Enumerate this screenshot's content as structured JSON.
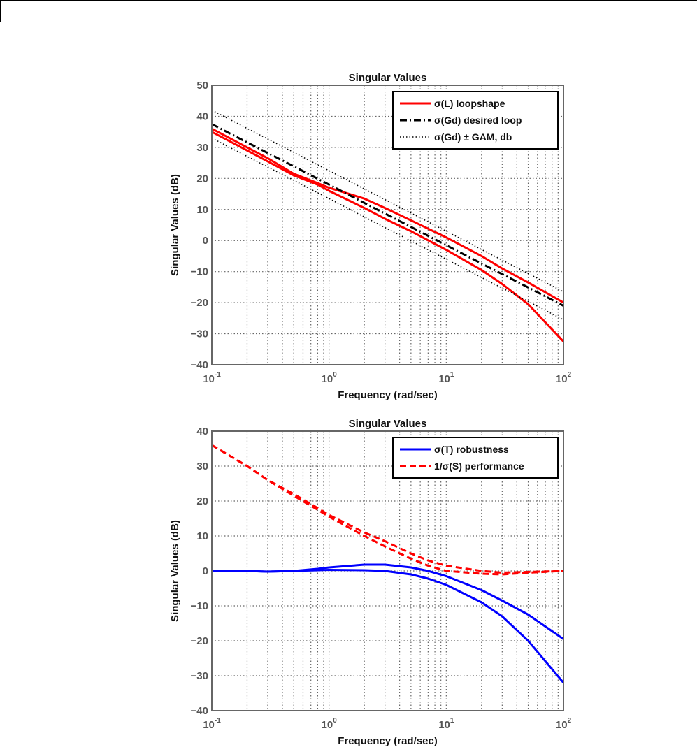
{
  "chart_data": [
    {
      "type": "line",
      "title": "Singular Values",
      "xlabel": "Frequency (rad/sec)",
      "ylabel": "Singular Values (dB)",
      "xscale": "log",
      "xlim": [
        0.1,
        100
      ],
      "ylim": [
        -40,
        50
      ],
      "yticks": [
        50,
        40,
        30,
        20,
        10,
        0,
        -10,
        -20,
        -30,
        -40
      ],
      "xtick_labels": [
        {
          "base": "10",
          "exp": "-1"
        },
        {
          "base": "10",
          "exp": "0"
        },
        {
          "base": "10",
          "exp": "1"
        },
        {
          "base": "10",
          "exp": "2"
        }
      ],
      "grid": true,
      "legend_position": "top-right",
      "x": [
        0.1,
        0.2,
        0.3,
        0.5,
        0.8,
        1,
        2,
        3,
        5,
        10,
        20,
        30,
        50,
        100
      ],
      "series": [
        {
          "name": "σ(L) loopshape",
          "style": "solid",
          "color": "#ff0000",
          "legend": true,
          "values": [
            36,
            30,
            26.5,
            21.5,
            18.5,
            17,
            13.5,
            10.5,
            6.5,
            1,
            -5,
            -9,
            -13.5,
            -20
          ]
        },
        {
          "name": "σ(L) loopshape (min)",
          "style": "solid",
          "color": "#ff0000",
          "legend": false,
          "values": [
            35,
            29,
            25.5,
            21,
            18,
            16,
            10.5,
            7,
            3,
            -3,
            -9.5,
            -14,
            -20.5,
            -32.5
          ]
        },
        {
          "name": "σ(Gd) desired loop",
          "style": "dashdot",
          "color": "#000000",
          "legend": true,
          "values": [
            37.5,
            31.6,
            28.2,
            23.9,
            19.9,
            18,
            12.1,
            8.7,
            4.4,
            -1.5,
            -7.4,
            -10.8,
            -15.1,
            -21
          ]
        },
        {
          "name": "σ(Gd) ± GAM, db",
          "style": "dotted",
          "color": "#000000",
          "legend": true,
          "values": [
            42,
            36.1,
            32.7,
            28.4,
            24.4,
            22.5,
            16.6,
            13.2,
            8.9,
            3,
            -2.9,
            -6.3,
            -10.6,
            -16.5
          ]
        },
        {
          "name": "σ(Gd) - GAM",
          "style": "dotted",
          "color": "#000000",
          "legend": false,
          "values": [
            33,
            27.1,
            23.7,
            19.4,
            15.4,
            13.5,
            7.6,
            4.2,
            -0.1,
            -6,
            -11.9,
            -15.3,
            -19.6,
            -25.5
          ]
        }
      ]
    },
    {
      "type": "line",
      "title": "Singular Values",
      "xlabel": "Frequency (rad/sec)",
      "ylabel": "Singular Values (dB)",
      "xscale": "log",
      "xlim": [
        0.1,
        100
      ],
      "ylim": [
        -40,
        40
      ],
      "yticks": [
        40,
        30,
        20,
        10,
        0,
        -10,
        -20,
        -30,
        -40
      ],
      "xtick_labels": [
        {
          "base": "10",
          "exp": "-1"
        },
        {
          "base": "10",
          "exp": "0"
        },
        {
          "base": "10",
          "exp": "1"
        },
        {
          "base": "10",
          "exp": "2"
        }
      ],
      "grid": true,
      "legend_position": "top-right",
      "x": [
        0.1,
        0.2,
        0.3,
        0.5,
        0.8,
        1,
        2,
        3,
        5,
        7,
        10,
        20,
        30,
        50,
        100
      ],
      "series": [
        {
          "name": "σ(T) robustness",
          "style": "solid",
          "color": "#0000ff",
          "legend": true,
          "values": [
            0,
            0,
            -0.2,
            0,
            0.6,
            1,
            1.8,
            1.8,
            1,
            0,
            -1.5,
            -5.5,
            -8.5,
            -12.5,
            -19.5
          ]
        },
        {
          "name": "σ(T) robustness (min)",
          "style": "solid",
          "color": "#0000ff",
          "legend": false,
          "values": [
            0,
            0,
            -0.2,
            0,
            0.2,
            0.3,
            0.2,
            0,
            -1,
            -2.2,
            -4,
            -9,
            -13,
            -20,
            -32
          ]
        },
        {
          "name": "1/σ(S) performance",
          "style": "dashed",
          "color": "#ff0000",
          "legend": true,
          "values": [
            36,
            30,
            26,
            22,
            18,
            16,
            11,
            8.5,
            5,
            3,
            1.5,
            0,
            -0.5,
            -0.3,
            0
          ]
        },
        {
          "name": "1/σ(S) performance (min)",
          "style": "dashed",
          "color": "#ff0000",
          "legend": false,
          "values": [
            36,
            30,
            26,
            21.5,
            17.5,
            15.5,
            10,
            7,
            3.5,
            1.5,
            0,
            -0.8,
            -1,
            -0.5,
            0
          ]
        }
      ]
    }
  ]
}
